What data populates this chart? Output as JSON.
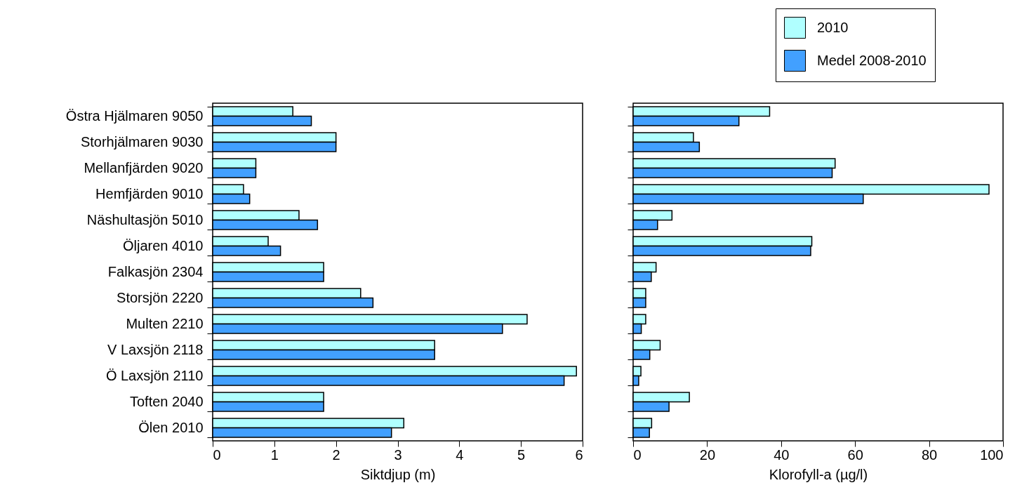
{
  "chart_data": [
    {
      "type": "bar",
      "orientation": "horizontal",
      "xlabel": "Siktdjup (m)",
      "categories": [
        "Östra Hjälmaren 9050",
        "Storhjälmaren 9030",
        "Mellanfjärden 9020",
        "Hemfjärden 9010",
        "Näshultasjön 5010",
        "Öljaren 4010",
        "Falkasjön 2304",
        "Storsjön 2220",
        "Multen 2210",
        "V Laxsjön 2118",
        "Ö Laxsjön 2110",
        "Toften 2040",
        "Ölen 2010"
      ],
      "xlim": [
        0,
        6
      ],
      "xticks": [
        0,
        1,
        2,
        3,
        4,
        5,
        6
      ],
      "legend": false,
      "series": [
        {
          "color": "#b0ffff",
          "values": [
            1.3,
            2.0,
            0.7,
            0.5,
            1.4,
            0.9,
            1.8,
            2.4,
            5.1,
            3.6,
            5.9,
            1.8,
            3.1
          ]
        },
        {
          "color": "#42a0ff",
          "values": [
            1.6,
            2.0,
            0.7,
            0.6,
            1.7,
            1.1,
            1.8,
            2.6,
            4.7,
            3.6,
            5.7,
            1.8,
            2.9
          ]
        }
      ]
    },
    {
      "type": "bar",
      "orientation": "horizontal",
      "xlabel": "Klorofyll-a (µg/l)",
      "categories": [
        null,
        null,
        null,
        null,
        null,
        null,
        null,
        null,
        null,
        null,
        null,
        null,
        null
      ],
      "xlim": [
        0,
        100
      ],
      "xticks": [
        0,
        20,
        40,
        60,
        80,
        100
      ],
      "tick_labels": "x",
      "legend": "top right",
      "series": [
        {
          "name": "2010",
          "color": "#b0ffff",
          "values": [
            36.9,
            16.3,
            54.6,
            96.2,
            10.5,
            48.3,
            6.2,
            3.4,
            3.4,
            7.3,
            2.1,
            15.2,
            5.0
          ]
        },
        {
          "name": "Medel 2008-2010",
          "color": "#42a0ff",
          "values": [
            28.6,
            17.9,
            53.8,
            62.2,
            6.6,
            48.0,
            4.9,
            3.4,
            2.2,
            4.5,
            1.5,
            9.7,
            4.4
          ]
        }
      ]
    }
  ]
}
